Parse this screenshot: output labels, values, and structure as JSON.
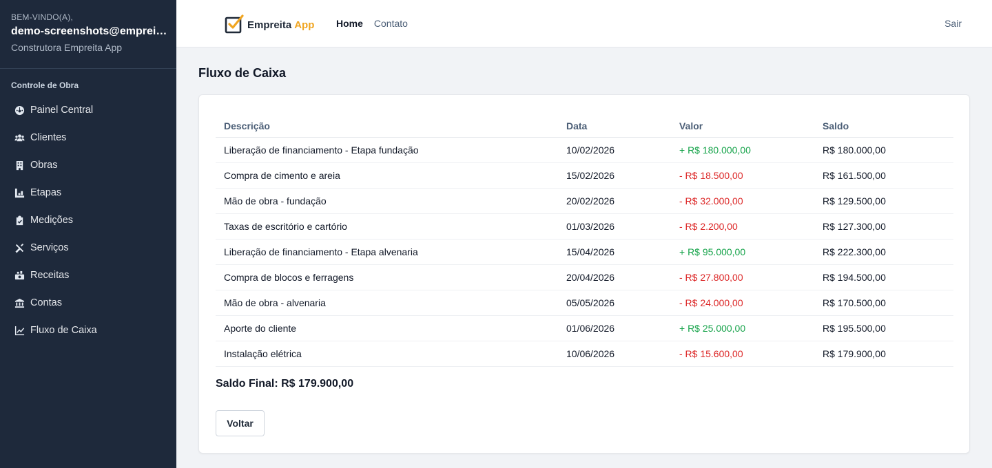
{
  "sidebar": {
    "welcome_label": "BEM-VINDO(A),",
    "user_email": "demo-screenshots@empreitaapp.com.br",
    "company": "Construtora Empreita App",
    "section_title": "Controle de Obra",
    "items": [
      {
        "label": "Painel Central",
        "icon": "dashboard-icon"
      },
      {
        "label": "Clientes",
        "icon": "users-icon"
      },
      {
        "label": "Obras",
        "icon": "building-icon"
      },
      {
        "label": "Etapas",
        "icon": "stairs-icon"
      },
      {
        "label": "Medições",
        "icon": "clipboard-icon"
      },
      {
        "label": "Serviços",
        "icon": "tools-icon"
      },
      {
        "label": "Receitas",
        "icon": "cash-icon"
      },
      {
        "label": "Contas",
        "icon": "bank-icon"
      },
      {
        "label": "Fluxo de Caixa",
        "icon": "line-chart-icon"
      }
    ]
  },
  "topbar": {
    "brand": "Empreita",
    "brand_accent": "App",
    "nav": [
      "Home",
      "Contato"
    ],
    "logout": "Sair",
    "accent_color": "#f0a521"
  },
  "main": {
    "title": "Fluxo de Caixa",
    "columns": [
      "Descrição",
      "Data",
      "Valor",
      "Saldo"
    ],
    "rows": [
      {
        "descricao": "Liberação de financiamento - Etapa fundação",
        "data": "10/02/2026",
        "valor": "+ R$ 180.000,00",
        "tipo": "pos",
        "saldo": "R$ 180.000,00"
      },
      {
        "descricao": "Compra de cimento e areia",
        "data": "15/02/2026",
        "valor": "- R$ 18.500,00",
        "tipo": "neg",
        "saldo": "R$ 161.500,00"
      },
      {
        "descricao": "Mão de obra - fundação",
        "data": "20/02/2026",
        "valor": "- R$ 32.000,00",
        "tipo": "neg",
        "saldo": "R$ 129.500,00"
      },
      {
        "descricao": "Taxas de escritório e cartório",
        "data": "01/03/2026",
        "valor": "- R$ 2.200,00",
        "tipo": "neg",
        "saldo": "R$ 127.300,00"
      },
      {
        "descricao": "Liberação de financiamento - Etapa alvenaria",
        "data": "15/04/2026",
        "valor": "+ R$ 95.000,00",
        "tipo": "pos",
        "saldo": "R$ 222.300,00"
      },
      {
        "descricao": "Compra de blocos e ferragens",
        "data": "20/04/2026",
        "valor": "- R$ 27.800,00",
        "tipo": "neg",
        "saldo": "R$ 194.500,00"
      },
      {
        "descricao": "Mão de obra - alvenaria",
        "data": "05/05/2026",
        "valor": "- R$ 24.000,00",
        "tipo": "neg",
        "saldo": "R$ 170.500,00"
      },
      {
        "descricao": "Aporte do cliente",
        "data": "01/06/2026",
        "valor": "+ R$ 25.000,00",
        "tipo": "pos",
        "saldo": "R$ 195.500,00"
      },
      {
        "descricao": "Instalação elétrica",
        "data": "10/06/2026",
        "valor": "- R$ 15.600,00",
        "tipo": "neg",
        "saldo": "R$ 179.900,00"
      }
    ],
    "final_balance": "Saldo Final: R$ 179.900,00",
    "back_button": "Voltar",
    "positive_color": "#16a34a",
    "negative_color": "#dc2626"
  }
}
